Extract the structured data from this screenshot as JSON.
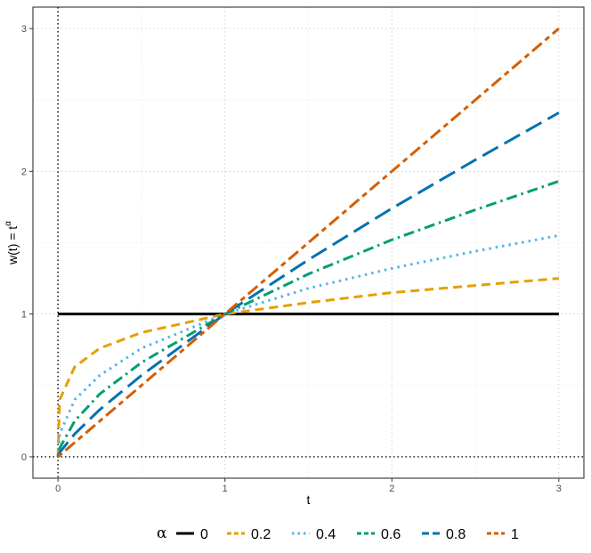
{
  "chart_data": {
    "type": "line",
    "title": "",
    "xlabel": "t",
    "ylabel": {
      "base": "w(t) = t",
      "superscript": "α"
    },
    "xlim": [
      -0.15,
      3.15
    ],
    "ylim": [
      -0.15,
      3.15
    ],
    "x_ticks": [
      0,
      1,
      2,
      3
    ],
    "y_ticks": [
      0,
      1,
      2,
      3
    ],
    "x_tick_labels": [
      "0",
      "1",
      "2",
      "3"
    ],
    "y_tick_labels": [
      "0",
      "1",
      "2",
      "3"
    ],
    "grid": true,
    "reference_lines": {
      "vertical_x": 0,
      "horizontal_y": 0,
      "style": "dotted"
    },
    "function": "w(t) = t^α",
    "x_range": [
      0,
      3
    ],
    "legend": {
      "title": "α",
      "position": "bottom"
    },
    "series": [
      {
        "name": "0",
        "alpha": 0,
        "color": "#000000",
        "dash": "solid",
        "points": [
          [
            0,
            1
          ],
          [
            0.5,
            1
          ],
          [
            1,
            1
          ],
          [
            1.5,
            1
          ],
          [
            2,
            1
          ],
          [
            2.5,
            1
          ],
          [
            3,
            1
          ]
        ]
      },
      {
        "name": "0.2",
        "alpha": 0.2,
        "color": "#E69F00",
        "dash": "dashed",
        "points": [
          [
            0,
            0
          ],
          [
            0.01,
            0.4
          ],
          [
            0.1,
            0.63
          ],
          [
            0.25,
            0.76
          ],
          [
            0.5,
            0.87
          ],
          [
            1,
            1
          ],
          [
            1.5,
            1.08
          ],
          [
            2,
            1.15
          ],
          [
            2.5,
            1.2
          ],
          [
            3,
            1.25
          ]
        ]
      },
      {
        "name": "0.4",
        "alpha": 0.4,
        "color": "#56B4E9",
        "dash": "dotted",
        "points": [
          [
            0,
            0
          ],
          [
            0.01,
            0.16
          ],
          [
            0.1,
            0.4
          ],
          [
            0.25,
            0.57
          ],
          [
            0.5,
            0.76
          ],
          [
            1,
            1
          ],
          [
            1.5,
            1.18
          ],
          [
            2,
            1.32
          ],
          [
            2.5,
            1.44
          ],
          [
            3,
            1.55
          ]
        ]
      },
      {
        "name": "0.6",
        "alpha": 0.6,
        "color": "#009E73",
        "dash": "dotdash",
        "points": [
          [
            0,
            0
          ],
          [
            0.01,
            0.06
          ],
          [
            0.1,
            0.25
          ],
          [
            0.25,
            0.44
          ],
          [
            0.5,
            0.66
          ],
          [
            1,
            1
          ],
          [
            1.5,
            1.28
          ],
          [
            2,
            1.52
          ],
          [
            2.5,
            1.73
          ],
          [
            3,
            1.93
          ]
        ]
      },
      {
        "name": "0.8",
        "alpha": 0.8,
        "color": "#0072B2",
        "dash": "longdash",
        "points": [
          [
            0,
            0
          ],
          [
            0.01,
            0.03
          ],
          [
            0.1,
            0.16
          ],
          [
            0.25,
            0.33
          ],
          [
            0.5,
            0.57
          ],
          [
            1,
            1
          ],
          [
            1.5,
            1.38
          ],
          [
            2,
            1.74
          ],
          [
            2.5,
            2.08
          ],
          [
            3,
            2.41
          ]
        ]
      },
      {
        "name": "1",
        "alpha": 1,
        "color": "#D55E00",
        "dash": "twodash",
        "points": [
          [
            0,
            0
          ],
          [
            0.5,
            0.5
          ],
          [
            1,
            1
          ],
          [
            1.5,
            1.5
          ],
          [
            2,
            2
          ],
          [
            2.5,
            2.5
          ],
          [
            3,
            3
          ]
        ]
      }
    ]
  }
}
